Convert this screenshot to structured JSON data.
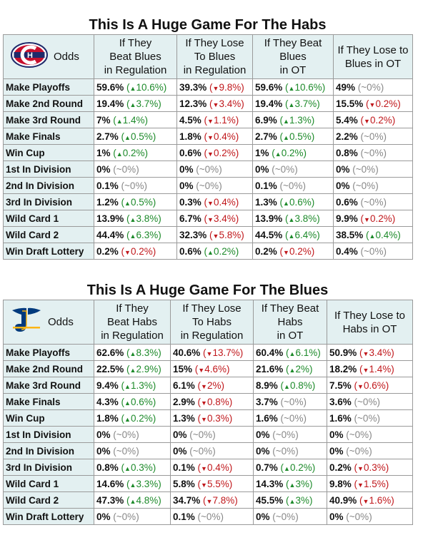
{
  "tables": [
    {
      "title": "This Is A Huge Game For The Habs",
      "team_logo": "canadiens-logo",
      "odds_label": "Odds",
      "columns": [
        "If They\nBeat Blues\nin Regulation",
        "If They Lose\nTo Blues\nin Regulation",
        "If They Beat\nBlues\nin OT",
        "If They Lose to\nBlues in OT"
      ],
      "rows": [
        {
          "label": "Make Playoffs",
          "cells": [
            {
              "v": "59.6%",
              "d": "10.6%",
              "dir": "up"
            },
            {
              "v": "39.3%",
              "d": "9.8%",
              "dir": "down"
            },
            {
              "v": "59.6%",
              "d": "10.6%",
              "dir": "up"
            },
            {
              "v": "49%",
              "d": "~0%",
              "dir": "flat"
            }
          ]
        },
        {
          "label": "Make 2nd Round",
          "cells": [
            {
              "v": "19.4%",
              "d": "3.7%",
              "dir": "up"
            },
            {
              "v": "12.3%",
              "d": "3.4%",
              "dir": "down"
            },
            {
              "v": "19.4%",
              "d": "3.7%",
              "dir": "up"
            },
            {
              "v": "15.5%",
              "d": "0.2%",
              "dir": "down"
            }
          ]
        },
        {
          "label": "Make 3rd Round",
          "cells": [
            {
              "v": "7%",
              "d": "1.4%",
              "dir": "up"
            },
            {
              "v": "4.5%",
              "d": "1.1%",
              "dir": "down"
            },
            {
              "v": "6.9%",
              "d": "1.3%",
              "dir": "up"
            },
            {
              "v": "5.4%",
              "d": "0.2%",
              "dir": "down"
            }
          ]
        },
        {
          "label": "Make Finals",
          "cells": [
            {
              "v": "2.7%",
              "d": "0.5%",
              "dir": "up"
            },
            {
              "v": "1.8%",
              "d": "0.4%",
              "dir": "down"
            },
            {
              "v": "2.7%",
              "d": "0.5%",
              "dir": "up"
            },
            {
              "v": "2.2%",
              "d": "~0%",
              "dir": "flat"
            }
          ]
        },
        {
          "label": "Win Cup",
          "cells": [
            {
              "v": "1%",
              "d": "0.2%",
              "dir": "up"
            },
            {
              "v": "0.6%",
              "d": "0.2%",
              "dir": "down"
            },
            {
              "v": "1%",
              "d": "0.2%",
              "dir": "up"
            },
            {
              "v": "0.8%",
              "d": "~0%",
              "dir": "flat"
            }
          ]
        },
        {
          "label": "1st In Division",
          "cells": [
            {
              "v": "0%",
              "d": "~0%",
              "dir": "flat"
            },
            {
              "v": "0%",
              "d": "~0%",
              "dir": "flat"
            },
            {
              "v": "0%",
              "d": "~0%",
              "dir": "flat"
            },
            {
              "v": "0%",
              "d": "~0%",
              "dir": "flat"
            }
          ]
        },
        {
          "label": "2nd In Division",
          "cells": [
            {
              "v": "0.1%",
              "d": "~0%",
              "dir": "flat"
            },
            {
              "v": "0%",
              "d": "~0%",
              "dir": "flat"
            },
            {
              "v": "0.1%",
              "d": "~0%",
              "dir": "flat"
            },
            {
              "v": "0%",
              "d": "~0%",
              "dir": "flat"
            }
          ]
        },
        {
          "label": "3rd In Division",
          "cells": [
            {
              "v": "1.2%",
              "d": "0.5%",
              "dir": "up"
            },
            {
              "v": "0.3%",
              "d": "0.4%",
              "dir": "down"
            },
            {
              "v": "1.3%",
              "d": "0.6%",
              "dir": "up"
            },
            {
              "v": "0.6%",
              "d": "~0%",
              "dir": "flat"
            }
          ]
        },
        {
          "label": "Wild Card 1",
          "cells": [
            {
              "v": "13.9%",
              "d": "3.8%",
              "dir": "up"
            },
            {
              "v": "6.7%",
              "d": "3.4%",
              "dir": "down"
            },
            {
              "v": "13.9%",
              "d": "3.8%",
              "dir": "up"
            },
            {
              "v": "9.9%",
              "d": "0.2%",
              "dir": "down"
            }
          ]
        },
        {
          "label": "Wild Card 2",
          "cells": [
            {
              "v": "44.4%",
              "d": "6.3%",
              "dir": "up"
            },
            {
              "v": "32.3%",
              "d": "5.8%",
              "dir": "down"
            },
            {
              "v": "44.5%",
              "d": "6.4%",
              "dir": "up"
            },
            {
              "v": "38.5%",
              "d": "0.4%",
              "dir": "up"
            }
          ]
        },
        {
          "label": "Win Draft Lottery",
          "cells": [
            {
              "v": "0.2%",
              "d": "0.2%",
              "dir": "down"
            },
            {
              "v": "0.6%",
              "d": "0.2%",
              "dir": "up"
            },
            {
              "v": "0.2%",
              "d": "0.2%",
              "dir": "down"
            },
            {
              "v": "0.4%",
              "d": "~0%",
              "dir": "flat"
            }
          ]
        }
      ]
    },
    {
      "title": "This Is A Huge Game For The Blues",
      "team_logo": "blues-logo",
      "odds_label": "Odds",
      "columns": [
        "If They\nBeat Habs\nin Regulation",
        "If They Lose\nTo Habs\nin Regulation",
        "If They Beat\nHabs\nin OT",
        "If They Lose to\nHabs in OT"
      ],
      "rows": [
        {
          "label": "Make Playoffs",
          "cells": [
            {
              "v": "62.6%",
              "d": "8.3%",
              "dir": "up"
            },
            {
              "v": "40.6%",
              "d": "13.7%",
              "dir": "down"
            },
            {
              "v": "60.4%",
              "d": "6.1%",
              "dir": "up"
            },
            {
              "v": "50.9%",
              "d": "3.4%",
              "dir": "down"
            }
          ]
        },
        {
          "label": "Make 2nd Round",
          "cells": [
            {
              "v": "22.5%",
              "d": "2.9%",
              "dir": "up"
            },
            {
              "v": "15%",
              "d": "4.6%",
              "dir": "down"
            },
            {
              "v": "21.6%",
              "d": "2%",
              "dir": "up"
            },
            {
              "v": "18.2%",
              "d": "1.4%",
              "dir": "down"
            }
          ]
        },
        {
          "label": "Make 3rd Round",
          "cells": [
            {
              "v": "9.4%",
              "d": "1.3%",
              "dir": "up"
            },
            {
              "v": "6.1%",
              "d": "2%",
              "dir": "down"
            },
            {
              "v": "8.9%",
              "d": "0.8%",
              "dir": "up"
            },
            {
              "v": "7.5%",
              "d": "0.6%",
              "dir": "down"
            }
          ]
        },
        {
          "label": "Make Finals",
          "cells": [
            {
              "v": "4.3%",
              "d": "0.6%",
              "dir": "up"
            },
            {
              "v": "2.9%",
              "d": "0.8%",
              "dir": "down"
            },
            {
              "v": "3.7%",
              "d": "~0%",
              "dir": "flat"
            },
            {
              "v": "3.6%",
              "d": "~0%",
              "dir": "flat"
            }
          ]
        },
        {
          "label": "Win Cup",
          "cells": [
            {
              "v": "1.8%",
              "d": "0.2%",
              "dir": "up"
            },
            {
              "v": "1.3%",
              "d": "0.3%",
              "dir": "down"
            },
            {
              "v": "1.6%",
              "d": "~0%",
              "dir": "flat"
            },
            {
              "v": "1.6%",
              "d": "~0%",
              "dir": "flat"
            }
          ]
        },
        {
          "label": "1st In Division",
          "cells": [
            {
              "v": "0%",
              "d": "~0%",
              "dir": "flat"
            },
            {
              "v": "0%",
              "d": "~0%",
              "dir": "flat"
            },
            {
              "v": "0%",
              "d": "~0%",
              "dir": "flat"
            },
            {
              "v": "0%",
              "d": "~0%",
              "dir": "flat"
            }
          ]
        },
        {
          "label": "2nd In Division",
          "cells": [
            {
              "v": "0%",
              "d": "~0%",
              "dir": "flat"
            },
            {
              "v": "0%",
              "d": "~0%",
              "dir": "flat"
            },
            {
              "v": "0%",
              "d": "~0%",
              "dir": "flat"
            },
            {
              "v": "0%",
              "d": "~0%",
              "dir": "flat"
            }
          ]
        },
        {
          "label": "3rd In Division",
          "cells": [
            {
              "v": "0.8%",
              "d": "0.3%",
              "dir": "up"
            },
            {
              "v": "0.1%",
              "d": "0.4%",
              "dir": "down"
            },
            {
              "v": "0.7%",
              "d": "0.2%",
              "dir": "up"
            },
            {
              "v": "0.2%",
              "d": "0.3%",
              "dir": "down"
            }
          ]
        },
        {
          "label": "Wild Card 1",
          "cells": [
            {
              "v": "14.6%",
              "d": "3.3%",
              "dir": "up"
            },
            {
              "v": "5.8%",
              "d": "5.5%",
              "dir": "down"
            },
            {
              "v": "14.3%",
              "d": "3%",
              "dir": "up"
            },
            {
              "v": "9.8%",
              "d": "1.5%",
              "dir": "down"
            }
          ]
        },
        {
          "label": "Wild Card 2",
          "cells": [
            {
              "v": "47.3%",
              "d": "4.8%",
              "dir": "up"
            },
            {
              "v": "34.7%",
              "d": "7.8%",
              "dir": "down"
            },
            {
              "v": "45.5%",
              "d": "3%",
              "dir": "up"
            },
            {
              "v": "40.9%",
              "d": "1.6%",
              "dir": "down"
            }
          ]
        },
        {
          "label": "Win Draft Lottery",
          "cells": [
            {
              "v": "0%",
              "d": "~0%",
              "dir": "flat"
            },
            {
              "v": "0.1%",
              "d": "~0%",
              "dir": "flat"
            },
            {
              "v": "0%",
              "d": "~0%",
              "dir": "flat"
            },
            {
              "v": "0%",
              "d": "~0%",
              "dir": "flat"
            }
          ]
        }
      ]
    }
  ]
}
